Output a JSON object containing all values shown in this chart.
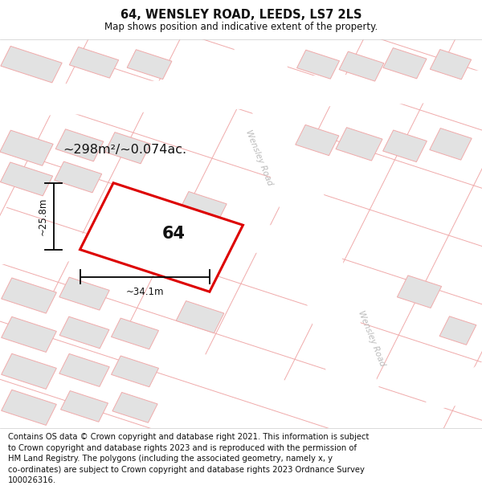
{
  "title": "64, WENSLEY ROAD, LEEDS, LS7 2LS",
  "subtitle": "Map shows position and indicative extent of the property.",
  "footer": "Contains OS data © Crown copyright and database right 2021. This information is subject\nto Crown copyright and database rights 2023 and is reproduced with the permission of\nHM Land Registry. The polygons (including the associated geometry, namely x, y\nco-ordinates) are subject to Crown copyright and database rights 2023 Ordnance Survey\n100026316.",
  "area_label": "~298m²/~0.074ac.",
  "width_label": "~34.1m",
  "height_label": "~25.8m",
  "plot_number": "64",
  "bg_color": "#f7f7f7",
  "road_white": "#ffffff",
  "block_color": "#e2e2e2",
  "boundary_color": "#f0aaaa",
  "highlight_color": "#dd0000",
  "road_label_color": "#aaaaaa",
  "road_label1": "Wensley Road",
  "road_label2": "Wensley Road",
  "title_fontsize": 10.5,
  "subtitle_fontsize": 8.5,
  "footer_fontsize": 7.2,
  "area_fontsize": 11.5,
  "dim_fontsize": 8.5,
  "plot_fontsize": 15,
  "road_fontsize": 7.5
}
